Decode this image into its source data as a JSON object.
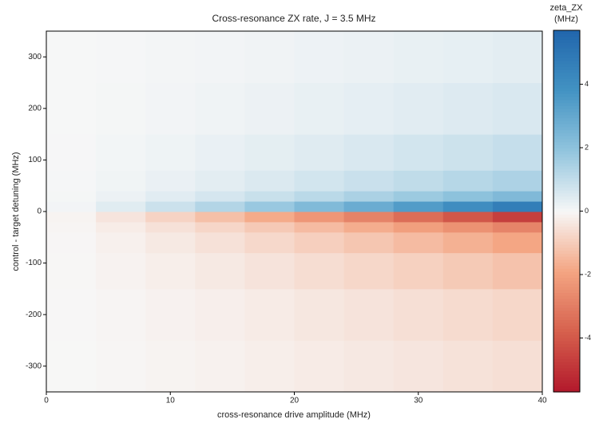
{
  "chart_data": {
    "type": "heatmap",
    "title": "Cross-resonance ZX rate, J = 3.5 MHz",
    "xlabel": "cross-resonance drive amplitude (MHz)",
    "ylabel": "control - target detuning (MHz)",
    "colorbar_title": [
      "zeta_ZX",
      "(MHz)"
    ],
    "x_edges": [
      0,
      4,
      8,
      12,
      16,
      20,
      24,
      28,
      32,
      36,
      40
    ],
    "y_edges": [
      -350,
      -250,
      -150,
      -80,
      -40,
      -20,
      0,
      20,
      40,
      80,
      150,
      250,
      350
    ],
    "z": [
      [
        -0.01,
        -0.05,
        -0.1,
        -0.15,
        -0.21,
        -0.28,
        -0.34,
        -0.41,
        -0.49,
        -0.56
      ],
      [
        -0.02,
        -0.07,
        -0.13,
        -0.2,
        -0.28,
        -0.37,
        -0.46,
        -0.55,
        -0.65,
        -0.75
      ],
      [
        -0.03,
        -0.11,
        -0.21,
        -0.33,
        -0.46,
        -0.6,
        -0.74,
        -0.89,
        -1.05,
        -1.22
      ],
      [
        -0.04,
        -0.17,
        -0.33,
        -0.51,
        -0.71,
        -0.92,
        -1.14,
        -1.38,
        -1.62,
        -1.87
      ],
      [
        -0.06,
        -0.26,
        -0.5,
        -0.77,
        -1.06,
        -1.38,
        -1.71,
        -2.06,
        -2.43,
        -2.81
      ],
      [
        -0.1,
        -0.43,
        -0.83,
        -1.28,
        -1.77,
        -2.3,
        -2.85,
        -3.44,
        -4.05,
        -4.68
      ],
      [
        0.1,
        0.43,
        0.83,
        1.28,
        1.77,
        2.3,
        2.85,
        3.44,
        4.05,
        4.68
      ],
      [
        0.05,
        0.21,
        0.41,
        0.64,
        0.89,
        1.15,
        1.43,
        1.72,
        2.03,
        2.34
      ],
      [
        0.03,
        0.13,
        0.25,
        0.38,
        0.53,
        0.69,
        0.86,
        1.03,
        1.22,
        1.4
      ],
      [
        0.02,
        0.09,
        0.17,
        0.26,
        0.35,
        0.46,
        0.57,
        0.69,
        0.81,
        0.94
      ],
      [
        0.01,
        0.05,
        0.1,
        0.15,
        0.21,
        0.28,
        0.34,
        0.41,
        0.49,
        0.56
      ],
      [
        0.01,
        0.03,
        0.07,
        0.1,
        0.14,
        0.18,
        0.23,
        0.28,
        0.32,
        0.37
      ]
    ],
    "xlim": [
      0,
      40
    ],
    "xticks": [
      0,
      10,
      20,
      30,
      40
    ],
    "ylim": [
      -350,
      350
    ],
    "yticks": [
      -300,
      -200,
      -100,
      0,
      100,
      200,
      300
    ],
    "zlim": [
      -5.7,
      5.7
    ],
    "zticks": [
      -4,
      -2,
      0,
      2,
      4
    ],
    "colorscale": [
      "#b2182b",
      "#d6604d",
      "#f4a582",
      "#f7f7f7",
      "#92c5de",
      "#4393c3",
      "#2166ac"
    ]
  }
}
